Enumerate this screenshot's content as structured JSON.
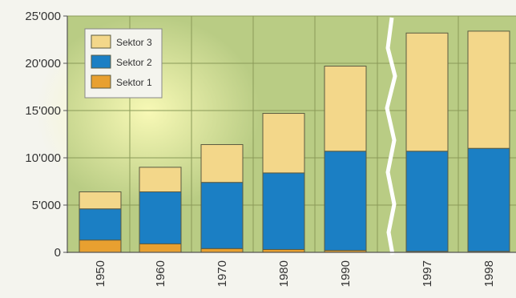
{
  "chart_data": {
    "type": "bar",
    "stacked": true,
    "categories": [
      "1950",
      "1960",
      "1970",
      "1980",
      "1990",
      "1997",
      "1998"
    ],
    "series": [
      {
        "name": "Sektor 1",
        "color": "#e8a030",
        "values": [
          1300,
          900,
          400,
          300,
          200,
          100,
          100
        ]
      },
      {
        "name": "Sektor 2",
        "color": "#1b7fc4",
        "values": [
          3300,
          5500,
          7000,
          8100,
          10500,
          10600,
          10900
        ]
      },
      {
        "name": "Sektor 3",
        "color": "#f3d78a",
        "values": [
          1800,
          2600,
          4000,
          6300,
          9000,
          12500,
          12400
        ]
      }
    ],
    "yticks": [
      "0",
      "5'000",
      "10'000",
      "15'000",
      "20'000",
      "25'000"
    ],
    "ytick_values": [
      0,
      5000,
      10000,
      15000,
      20000,
      25000
    ],
    "ylim": [
      0,
      25000
    ],
    "axis_break_after": "1990",
    "grid": true,
    "legend_position": "top-left",
    "plot_background": "#b9cc84",
    "title": "",
    "xlabel": "",
    "ylabel": ""
  }
}
